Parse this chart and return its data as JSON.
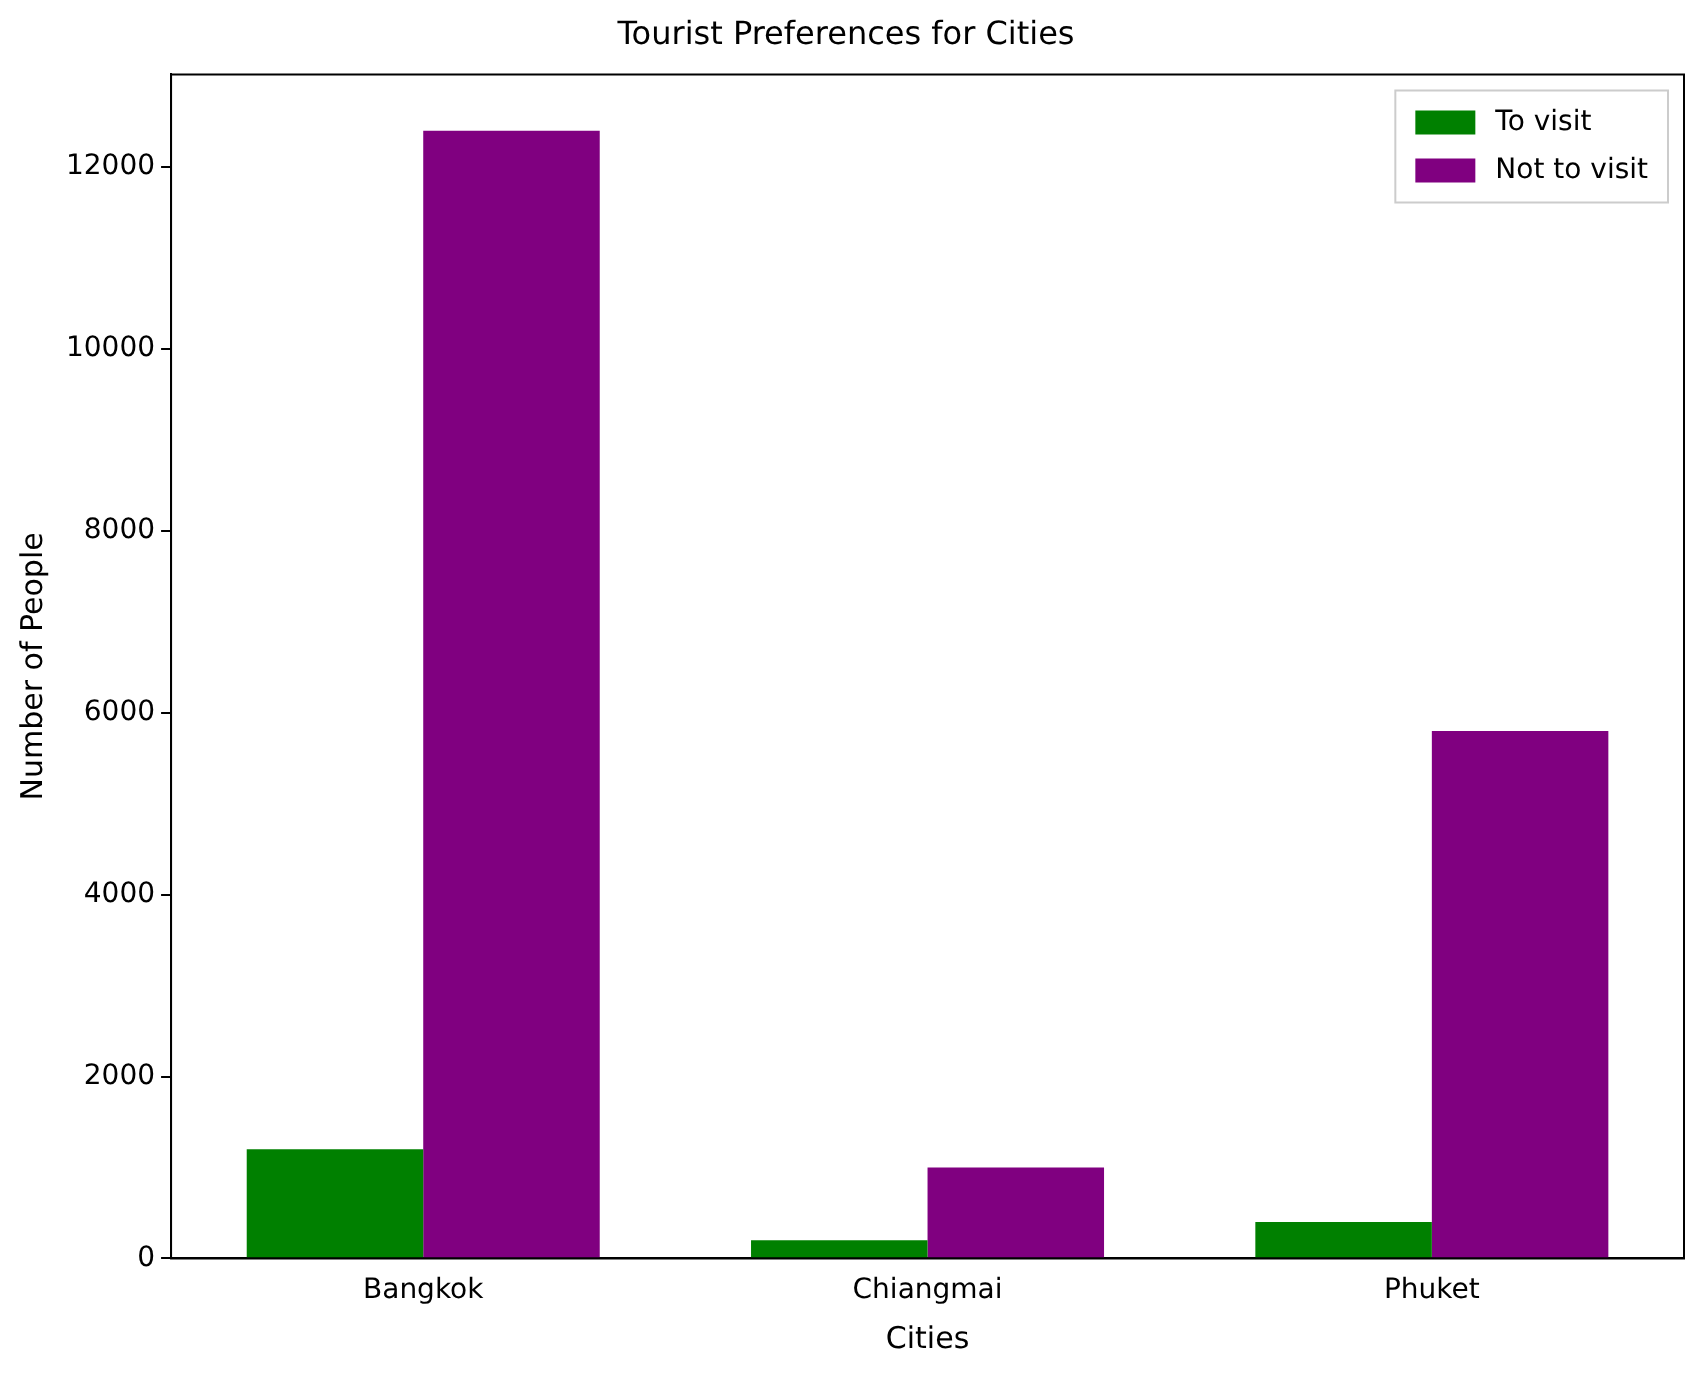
{
  "chart_data": {
    "type": "bar",
    "title": "Tourist Preferences for Cities",
    "xlabel": "Cities",
    "ylabel": "Number of People",
    "categories": [
      "Bangkok",
      "Chiangmai",
      "Phuket"
    ],
    "series": [
      {
        "name": "To visit",
        "color": "#008000",
        "values": [
          1200,
          200,
          400
        ]
      },
      {
        "name": "Not to visit",
        "color": "#800080",
        "values": [
          12400,
          1000,
          5800
        ]
      }
    ],
    "ylim": [
      0,
      13020
    ],
    "yticks": [
      0,
      2000,
      4000,
      6000,
      8000,
      10000,
      12000
    ],
    "grid": false,
    "legend": "top right"
  }
}
